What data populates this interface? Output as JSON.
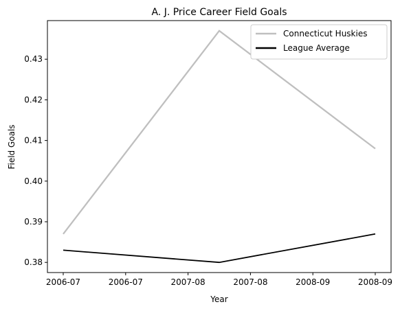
{
  "chart_data": {
    "type": "line",
    "title": "A. J. Price Career Field Goals",
    "xlabel": "Year",
    "ylabel": "Field Goals",
    "x": [
      "2006-07",
      "2007-08",
      "2008-09"
    ],
    "x_tick_labels": [
      "2006-07",
      "2006-07",
      "2007-08",
      "2007-08",
      "2008-09",
      "2008-09"
    ],
    "y_ticks": [
      0.38,
      0.39,
      0.4,
      0.41,
      0.42,
      0.43
    ],
    "y_tick_labels": [
      "0.38",
      "0.39",
      "0.40",
      "0.41",
      "0.42",
      "0.43"
    ],
    "ylim": [
      0.3775,
      0.4395
    ],
    "grid": false,
    "legend_position": "top-right",
    "series": [
      {
        "name": "Connecticut Huskies",
        "values": [
          0.387,
          0.437,
          0.408
        ],
        "color": "#bfbfbf"
      },
      {
        "name": "League Average",
        "values": [
          0.383,
          0.38,
          0.387
        ],
        "color": "#000000"
      }
    ]
  }
}
